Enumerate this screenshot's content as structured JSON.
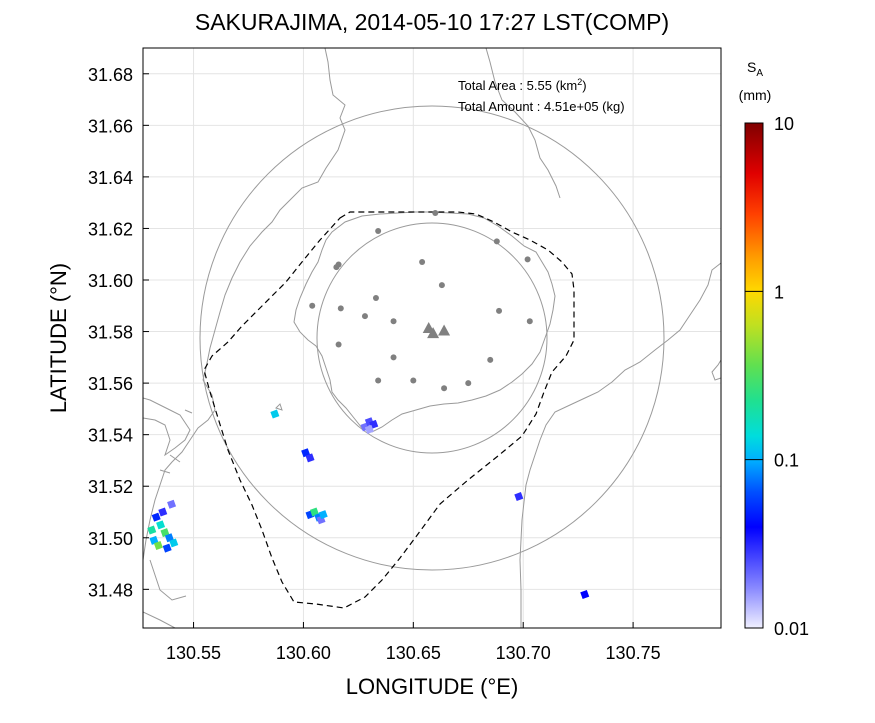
{
  "title": "SAKURAJIMA, 2014-05-10 17:27 LST(COMP)",
  "x_axis": {
    "label": "LONGITUDE (°E)",
    "range": [
      130.527,
      130.79
    ],
    "ticks": [
      130.55,
      130.6,
      130.65,
      130.7,
      130.75
    ],
    "tick_labels": [
      "130.55",
      "130.60",
      "130.65",
      "130.70",
      "130.75"
    ]
  },
  "y_axis": {
    "label": "LATITUDE (°N)",
    "range": [
      31.465,
      31.69
    ],
    "ticks": [
      31.48,
      31.5,
      31.52,
      31.54,
      31.56,
      31.58,
      31.6,
      31.62,
      31.64,
      31.66,
      31.68
    ],
    "tick_labels": [
      "31.48",
      "31.50",
      "31.52",
      "31.54",
      "31.56",
      "31.58",
      "31.60",
      "31.62",
      "31.64",
      "31.66",
      "31.68"
    ]
  },
  "summary": {
    "area_label": "Total Area   : 5.55 (km",
    "area_sup": "2",
    "area_close": ")",
    "amount_label": "Total Amount : 4.51e+05 (kg)"
  },
  "colorbar": {
    "symbol": "S",
    "subscript": "A",
    "unit": "(mm)",
    "scale": "log",
    "range": [
      0.01,
      10
    ],
    "tick_labels": [
      "10",
      "1",
      "0.1",
      "0.01"
    ],
    "tick_values": [
      10,
      1,
      0.1,
      0.01
    ]
  },
  "map": {
    "vent_location": [
      130.66,
      31.58
    ],
    "range_rings_km": [
      5,
      10
    ],
    "grid": true,
    "coastline_color": "#9a9a9a",
    "station_color": "#808080"
  },
  "chart_data": {
    "type": "heatmap",
    "title": "SAKURAJIMA, 2014-05-10 17:27 LST(COMP)",
    "xlabel": "LONGITUDE (°E)",
    "ylabel": "LATITUDE (°N)",
    "value_label": "S_A (mm)",
    "craters": [
      [
        130.657,
        31.581
      ],
      [
        130.659,
        31.579
      ],
      [
        130.664,
        31.58
      ]
    ],
    "stations": [
      [
        130.66,
        31.626
      ],
      [
        130.634,
        31.619
      ],
      [
        130.688,
        31.615
      ],
      [
        130.616,
        31.606
      ],
      [
        130.654,
        31.607
      ],
      [
        130.702,
        31.608
      ],
      [
        130.663,
        31.598
      ],
      [
        130.615,
        31.605
      ],
      [
        130.633,
        31.593
      ],
      [
        130.604,
        31.59
      ],
      [
        130.617,
        31.589
      ],
      [
        130.628,
        31.586
      ],
      [
        130.689,
        31.588
      ],
      [
        130.641,
        31.584
      ],
      [
        130.703,
        31.584
      ],
      [
        130.616,
        31.575
      ],
      [
        130.641,
        31.57
      ],
      [
        130.685,
        31.569
      ],
      [
        130.634,
        31.561
      ],
      [
        130.65,
        31.561
      ],
      [
        130.664,
        31.558
      ],
      [
        130.675,
        31.56
      ]
    ],
    "deposits": [
      {
        "lon": 130.628,
        "lat": 31.543,
        "value": 0.02
      },
      {
        "lon": 130.63,
        "lat": 31.545,
        "value": 0.025
      },
      {
        "lon": 130.632,
        "lat": 31.544,
        "value": 0.03
      },
      {
        "lon": 130.63,
        "lat": 31.542,
        "value": 0.015
      },
      {
        "lon": 130.587,
        "lat": 31.548,
        "value": 0.12
      },
      {
        "lon": 130.601,
        "lat": 31.533,
        "value": 0.05
      },
      {
        "lon": 130.603,
        "lat": 31.531,
        "value": 0.03
      },
      {
        "lon": 130.603,
        "lat": 31.509,
        "value": 0.06
      },
      {
        "lon": 130.605,
        "lat": 31.51,
        "value": 0.25
      },
      {
        "lon": 130.607,
        "lat": 31.508,
        "value": 0.08
      },
      {
        "lon": 130.608,
        "lat": 31.507,
        "value": 0.02
      },
      {
        "lon": 130.609,
        "lat": 31.509,
        "value": 0.1
      },
      {
        "lon": 130.533,
        "lat": 31.508,
        "value": 0.05
      },
      {
        "lon": 130.535,
        "lat": 31.505,
        "value": 0.15
      },
      {
        "lon": 130.537,
        "lat": 31.502,
        "value": 0.3
      },
      {
        "lon": 130.539,
        "lat": 31.5,
        "value": 0.08
      },
      {
        "lon": 130.532,
        "lat": 31.499,
        "value": 0.1
      },
      {
        "lon": 130.534,
        "lat": 31.497,
        "value": 0.4
      },
      {
        "lon": 130.538,
        "lat": 31.496,
        "value": 0.06
      },
      {
        "lon": 130.536,
        "lat": 31.51,
        "value": 0.03
      },
      {
        "lon": 130.54,
        "lat": 31.513,
        "value": 0.02
      },
      {
        "lon": 130.531,
        "lat": 31.503,
        "value": 0.2
      },
      {
        "lon": 130.541,
        "lat": 31.498,
        "value": 0.12
      },
      {
        "lon": 130.698,
        "lat": 31.516,
        "value": 0.03
      },
      {
        "lon": 130.728,
        "lat": 31.478,
        "value": 0.04
      }
    ]
  }
}
